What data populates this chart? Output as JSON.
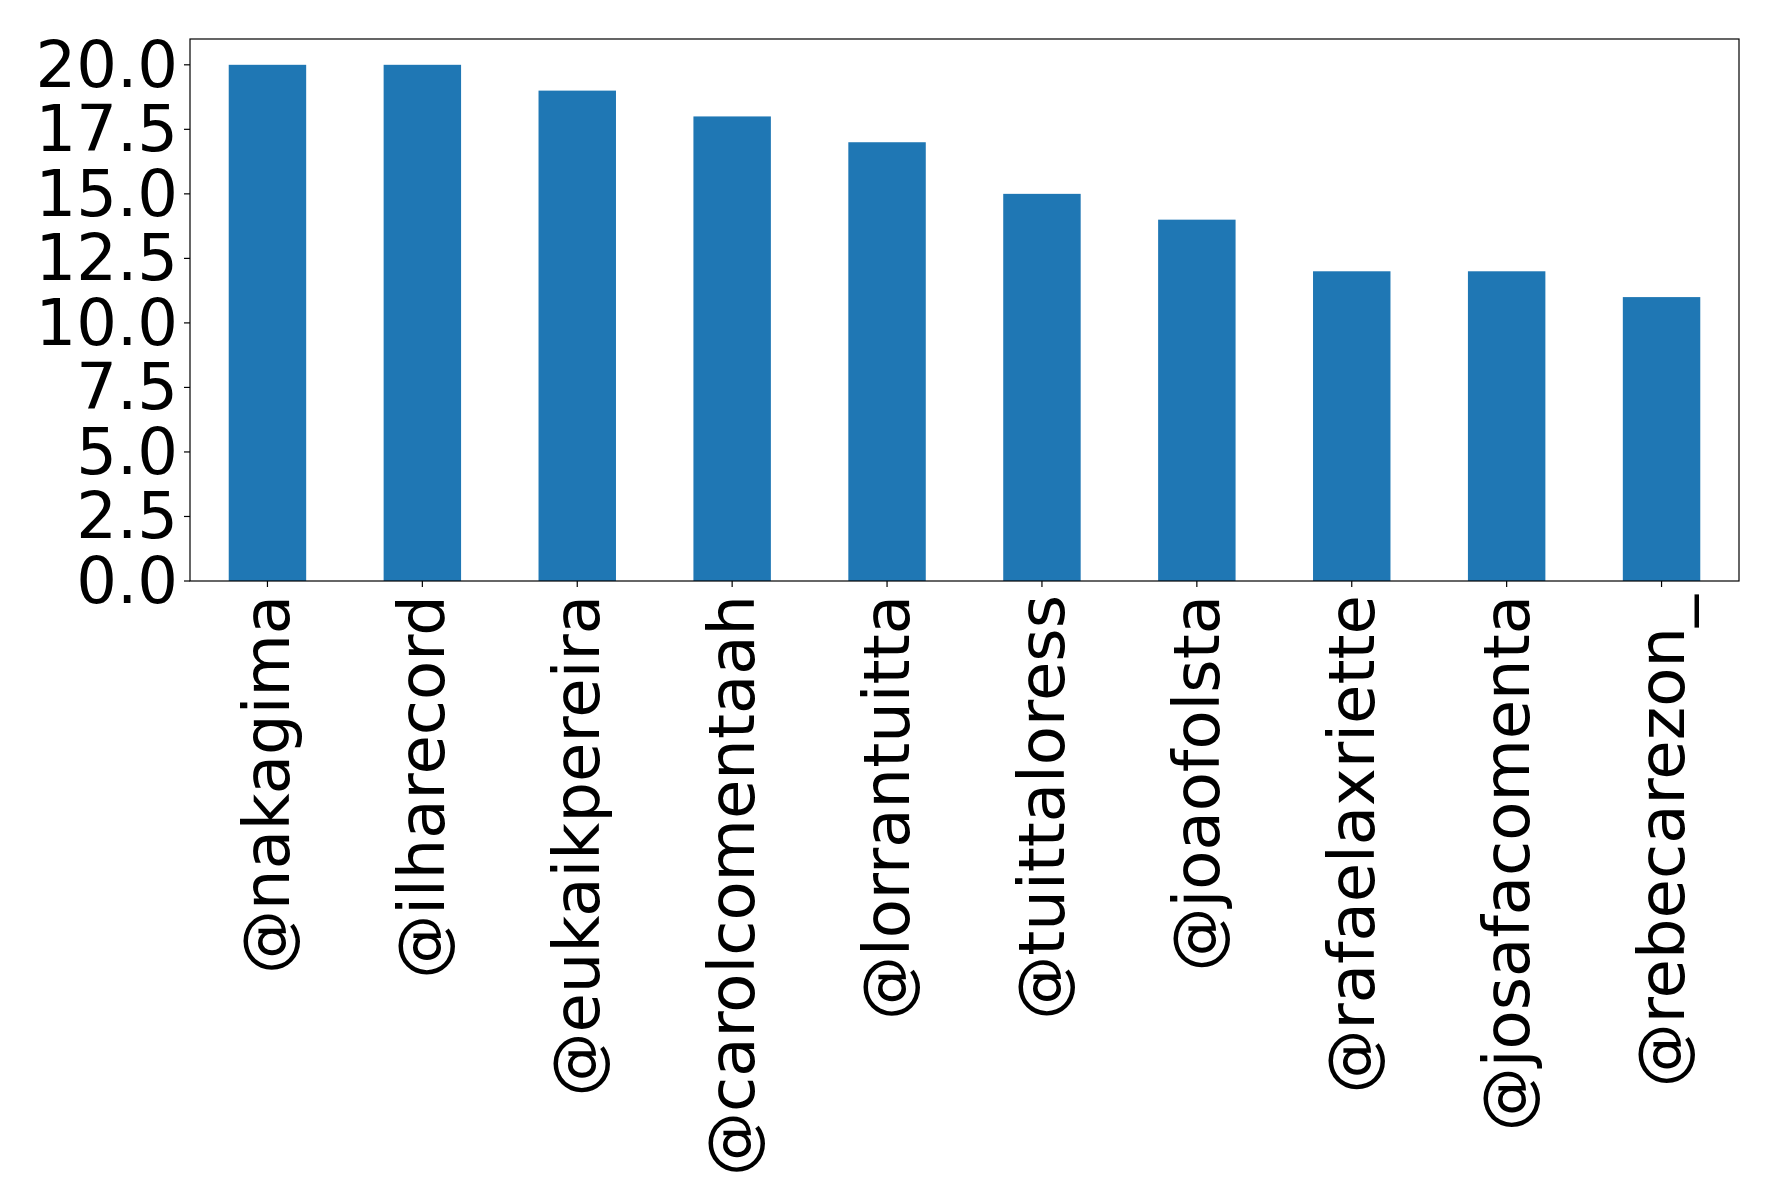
{
  "chart_data": {
    "type": "bar",
    "categories": [
      "@nakagima",
      "@ilharecord",
      "@eukaikpereira",
      "@carolcomentaah",
      "@lorrantuitta",
      "@tuittaloress",
      "@joaofolsta",
      "@rafaelaxriette",
      "@josafacomenta",
      "@rebecarezon_"
    ],
    "values": [
      20,
      20,
      19,
      18,
      17,
      15,
      14,
      12,
      12,
      11
    ],
    "color": "#1f77b4",
    "ylim": [
      0,
      21
    ],
    "yticks": [
      {
        "value": 0,
        "label": "0.0"
      },
      {
        "value": 2.5,
        "label": "2.5"
      },
      {
        "value": 5,
        "label": "5.0"
      },
      {
        "value": 7.5,
        "label": "7.5"
      },
      {
        "value": 10,
        "label": "10.0"
      },
      {
        "value": 12.5,
        "label": "12.5"
      },
      {
        "value": 15,
        "label": "15.0"
      },
      {
        "value": 17.5,
        "label": "17.5"
      },
      {
        "value": 20,
        "label": "20.0"
      }
    ]
  }
}
